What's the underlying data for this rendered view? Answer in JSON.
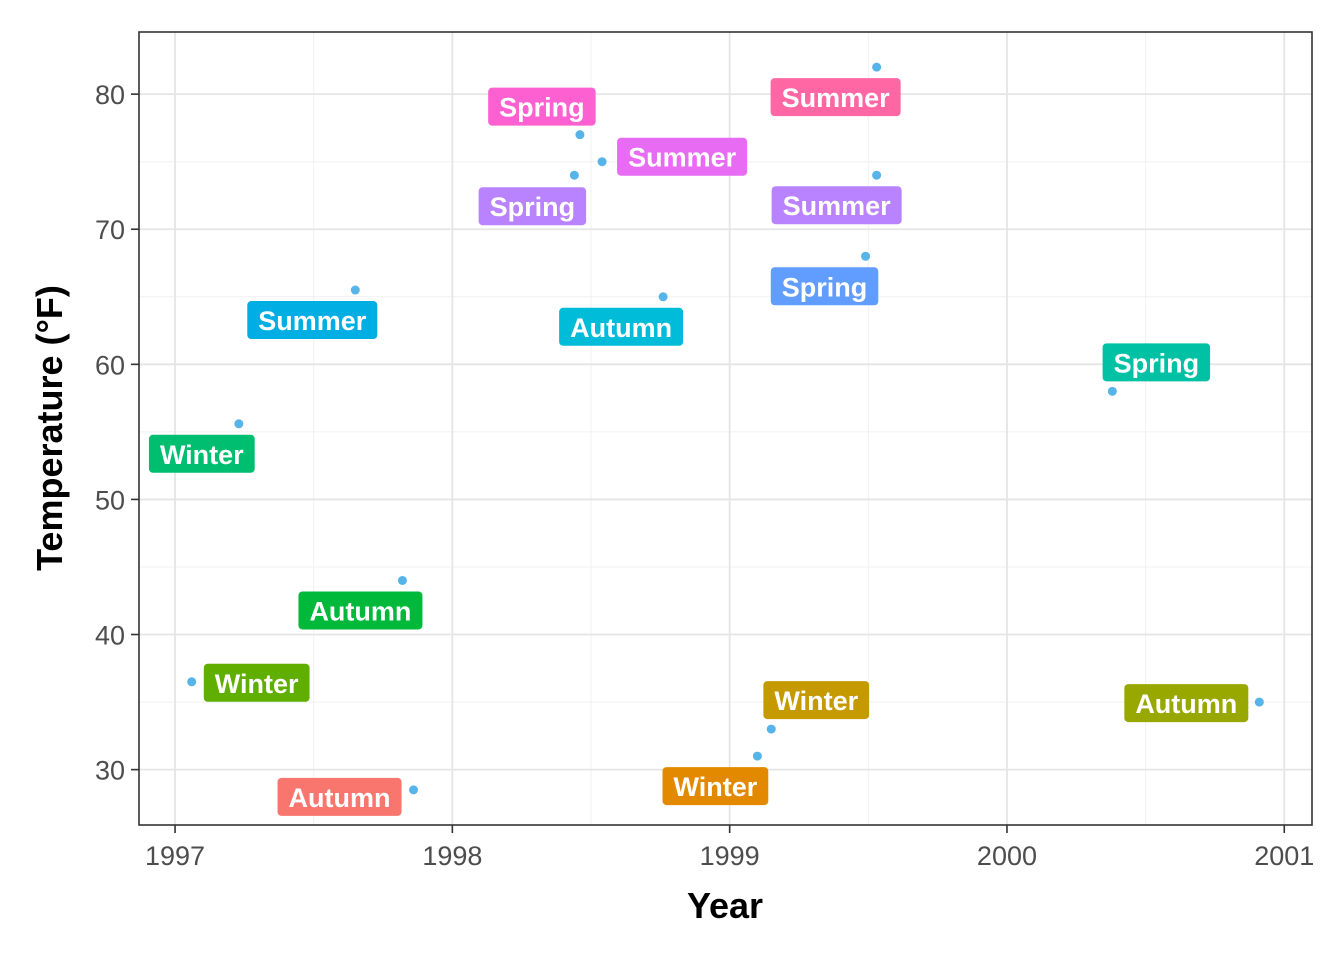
{
  "chart_data": {
    "type": "scatter",
    "xlabel": "Year",
    "ylabel": "Temperature (°F)",
    "xlim": [
      1996.87,
      2001.1
    ],
    "ylim": [
      25.9,
      84.6
    ],
    "xticks": [
      1997,
      1998,
      1999,
      2000,
      2001
    ],
    "yticks": [
      30,
      40,
      50,
      60,
      70,
      80
    ],
    "grid": true,
    "point_color": "#56b4e9",
    "points": [
      {
        "x": 1997.06,
        "y": 36.5,
        "label": "Winter",
        "color": "#5fae00"
      },
      {
        "x": 1997.23,
        "y": 55.6,
        "label": "Winter",
        "color": "#00be70"
      },
      {
        "x": 1997.65,
        "y": 65.5,
        "label": "Summer",
        "color": "#00aee3"
      },
      {
        "x": 1997.82,
        "y": 44.0,
        "label": "Autumn",
        "color": "#00b83a"
      },
      {
        "x": 1997.86,
        "y": 28.5,
        "label": "Autumn",
        "color": "#f8766d"
      },
      {
        "x": 1998.44,
        "y": 74.0,
        "label": "Spring",
        "color": "#b983ff"
      },
      {
        "x": 1998.46,
        "y": 77.0,
        "label": "Spring",
        "color": "#fd61d1"
      },
      {
        "x": 1998.54,
        "y": 75.0,
        "label": "Summer",
        "color": "#e76bf3"
      },
      {
        "x": 1998.76,
        "y": 65.0,
        "label": "Autumn",
        "color": "#00bcd8"
      },
      {
        "x": 1999.1,
        "y": 31.0,
        "label": "Winter",
        "color": "#e38900"
      },
      {
        "x": 1999.15,
        "y": 33.0,
        "label": "Winter",
        "color": "#c49a00"
      },
      {
        "x": 1999.49,
        "y": 68.0,
        "label": "Spring",
        "color": "#619cff"
      },
      {
        "x": 1999.53,
        "y": 82.0,
        "label": "Summer",
        "color": "#ff67a4"
      },
      {
        "x": 1999.53,
        "y": 74.0,
        "label": "Summer",
        "color": "#b983ff"
      },
      {
        "x": 2000.38,
        "y": 58.0,
        "label": "Spring",
        "color": "#00c1a3"
      },
      {
        "x": 2000.91,
        "y": 35.0,
        "label": "Autumn",
        "color": "#99a800"
      }
    ]
  }
}
